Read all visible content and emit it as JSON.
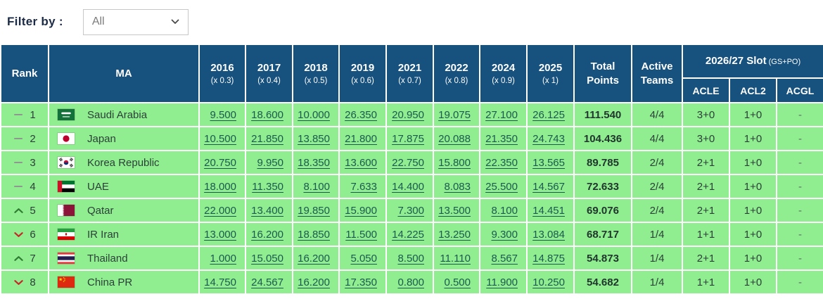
{
  "filter": {
    "label": "Filter by :",
    "value": "All"
  },
  "colors": {
    "header-bg": "#17517E",
    "row-bg": "#90EE90",
    "link": "#1A5A4E",
    "up": "#2E7D32",
    "down": "#C62828"
  },
  "table": {
    "headers": {
      "rank": "Rank",
      "ma": "MA",
      "years": [
        {
          "year": "2016",
          "mult": "(x 0.3)"
        },
        {
          "year": "2017",
          "mult": "(x 0.4)"
        },
        {
          "year": "2018",
          "mult": "(x 0.5)"
        },
        {
          "year": "2019",
          "mult": "(x 0.6)"
        },
        {
          "year": "2021",
          "mult": "(x 0.7)"
        },
        {
          "year": "2022",
          "mult": "(x 0.8)"
        },
        {
          "year": "2024",
          "mult": "(x 0.9)"
        },
        {
          "year": "2025",
          "mult": "(x 1)"
        }
      ],
      "total": "Total Points",
      "active": "Active Teams",
      "slot_group": "2026/27 Slot",
      "slot_note": "(GS+PO)",
      "slots": [
        "ACLE",
        "ACL2",
        "ACGL"
      ]
    },
    "rows": [
      {
        "movement": "same",
        "rank": "1",
        "flag": "sa",
        "country": "Saudi Arabia",
        "values": [
          "9.500",
          "18.600",
          "10.000",
          "26.350",
          "20.950",
          "19.075",
          "27.100",
          "26.125"
        ],
        "total": "111.540",
        "active": "4/4",
        "acle": "3+0",
        "acl2": "1+0",
        "acgl": "-"
      },
      {
        "movement": "same",
        "rank": "2",
        "flag": "jp",
        "country": "Japan",
        "values": [
          "10.500",
          "21.850",
          "13.850",
          "21.800",
          "17.875",
          "20.088",
          "21.350",
          "24.743"
        ],
        "total": "104.436",
        "active": "4/4",
        "acle": "3+0",
        "acl2": "1+0",
        "acgl": "-"
      },
      {
        "movement": "same",
        "rank": "3",
        "flag": "kr",
        "country": "Korea Republic",
        "values": [
          "20.750",
          "9.950",
          "18.350",
          "13.600",
          "22.750",
          "15.800",
          "22.350",
          "13.565"
        ],
        "total": "89.785",
        "active": "2/4",
        "acle": "2+1",
        "acl2": "1+0",
        "acgl": "-"
      },
      {
        "movement": "same",
        "rank": "4",
        "flag": "ae",
        "country": "UAE",
        "values": [
          "18.000",
          "11.350",
          "8.100",
          "7.633",
          "14.400",
          "8.083",
          "25.500",
          "14.567"
        ],
        "total": "72.633",
        "active": "2/4",
        "acle": "2+1",
        "acl2": "1+0",
        "acgl": "-"
      },
      {
        "movement": "up",
        "rank": "5",
        "flag": "qa",
        "country": "Qatar",
        "values": [
          "22.000",
          "13.400",
          "19.850",
          "15.900",
          "7.300",
          "13.500",
          "8.100",
          "14.451"
        ],
        "total": "69.076",
        "active": "2/4",
        "acle": "2+1",
        "acl2": "1+0",
        "acgl": "-"
      },
      {
        "movement": "down",
        "rank": "6",
        "flag": "ir",
        "country": "IR Iran",
        "values": [
          "13.000",
          "16.200",
          "18.850",
          "11.500",
          "14.225",
          "13.250",
          "9.300",
          "13.084"
        ],
        "total": "68.717",
        "active": "1/4",
        "acle": "1+1",
        "acl2": "1+0",
        "acgl": "-"
      },
      {
        "movement": "up",
        "rank": "7",
        "flag": "th",
        "country": "Thailand",
        "values": [
          "1.000",
          "15.050",
          "16.200",
          "5.050",
          "8.500",
          "11.110",
          "8.567",
          "14.875"
        ],
        "total": "54.873",
        "active": "1/4",
        "acle": "2+1",
        "acl2": "1+0",
        "acgl": "-"
      },
      {
        "movement": "down",
        "rank": "8",
        "flag": "cn",
        "country": "China PR",
        "values": [
          "14.750",
          "24.567",
          "16.200",
          "17.350",
          "0.800",
          "0.500",
          "11.900",
          "10.250"
        ],
        "total": "54.682",
        "active": "1/4",
        "acle": "1+1",
        "acl2": "1+0",
        "acgl": "-"
      }
    ]
  }
}
